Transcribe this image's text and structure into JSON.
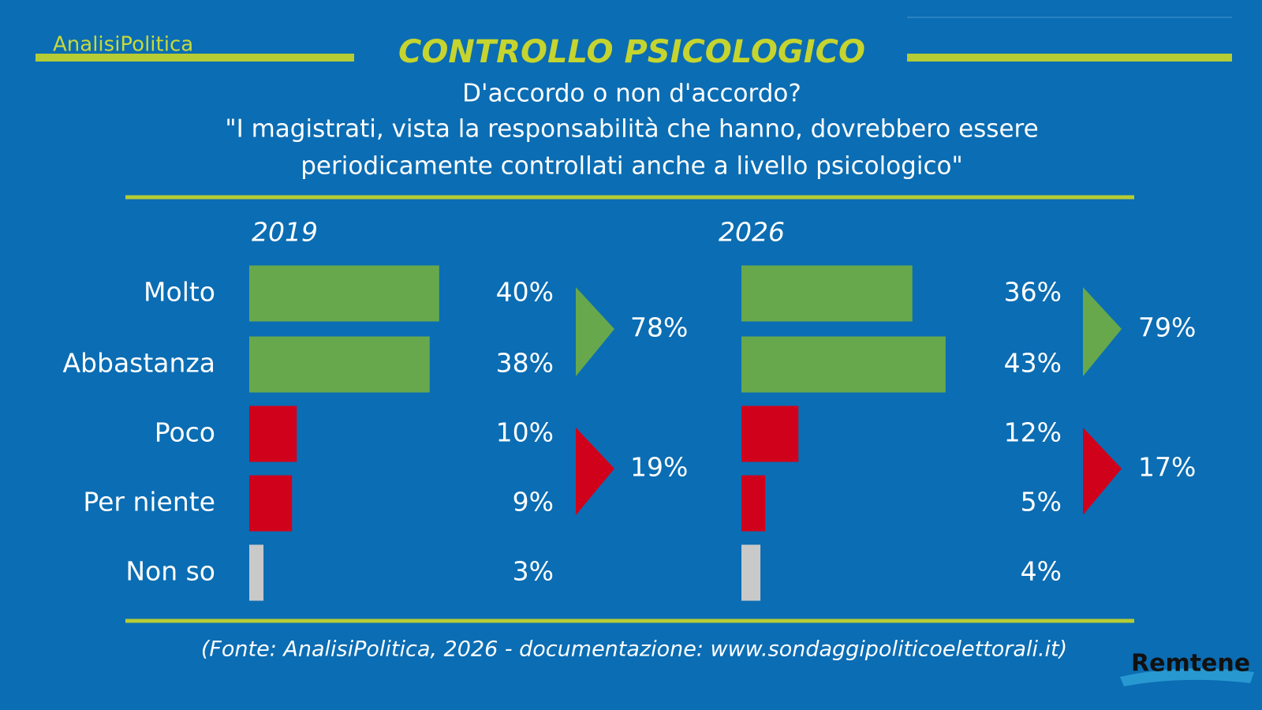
{
  "brand": "AnalisiPolitica",
  "title": "CONTROLLO PSICOLOGICO",
  "subtitle": "D'accordo o non d'accordo?",
  "question": [
    "\"I magistrati, vista la responsabilità che hanno, dovrebbero essere",
    "periodicamente controllati anche a livello psicologico\""
  ],
  "source": "(Fonte: AnalisiPolitica, 2026 - documentazione: www.sondaggipoliticoelettorali.it)",
  "logo": "Remtene",
  "chart_data": [
    {
      "type": "bar",
      "title": "2019",
      "categories": [
        "Molto",
        "Abbastanza",
        "Poco",
        "Per niente",
        "Non so"
      ],
      "values": [
        40,
        38,
        10,
        9,
        3
      ],
      "value_labels": [
        "40%",
        "38%",
        "10%",
        "9%",
        "3%"
      ],
      "colors": [
        "#67a84c",
        "#67a84c",
        "#d0021b",
        "#d0021b",
        "#c9c9c9"
      ],
      "totals": {
        "values": [
          78,
          19
        ],
        "value_labels": [
          "78%",
          "19%"
        ],
        "colors": [
          "#67a84c",
          "#d0021b"
        ]
      }
    },
    {
      "type": "bar",
      "title": "2026",
      "values": [
        36,
        43,
        12,
        5,
        4
      ],
      "value_labels": [
        "36%",
        "43%",
        "12%",
        "5%",
        "4%"
      ],
      "colors": [
        "#67a84c",
        "#67a84c",
        "#d0021b",
        "#d0021b",
        "#c9c9c9"
      ],
      "totals": {
        "values": [
          79,
          17
        ],
        "value_labels": [
          "79%",
          "17%"
        ],
        "colors": [
          "#67a84c",
          "#d0021b"
        ]
      }
    }
  ]
}
